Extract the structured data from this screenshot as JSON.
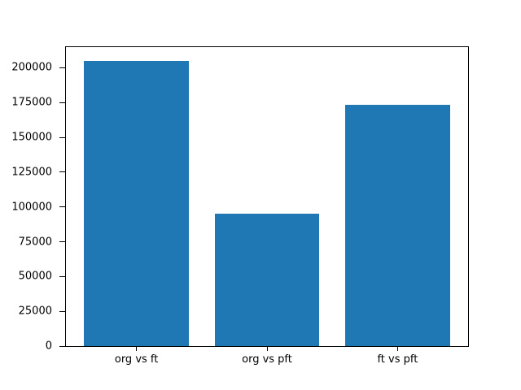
{
  "figure": {
    "background": "#ffffff",
    "frame_color": "#000000"
  },
  "chart_data": {
    "type": "bar",
    "title": "",
    "xlabel": "",
    "ylabel": "",
    "categories": [
      "org vs ft",
      "org vs pft",
      "ft vs pft"
    ],
    "values": [
      204600,
      95100,
      173100
    ],
    "yticks": [
      0,
      25000,
      50000,
      75000,
      100000,
      125000,
      150000,
      175000,
      200000
    ],
    "ytick_labels": [
      "0",
      "25000",
      "50000",
      "75000",
      "100000",
      "125000",
      "150000",
      "175000",
      "200000"
    ],
    "ylim": [
      0,
      214800
    ],
    "bar_color": "#1f77b4",
    "bar_width_fraction": 0.8,
    "grid": false,
    "legend": null
  }
}
